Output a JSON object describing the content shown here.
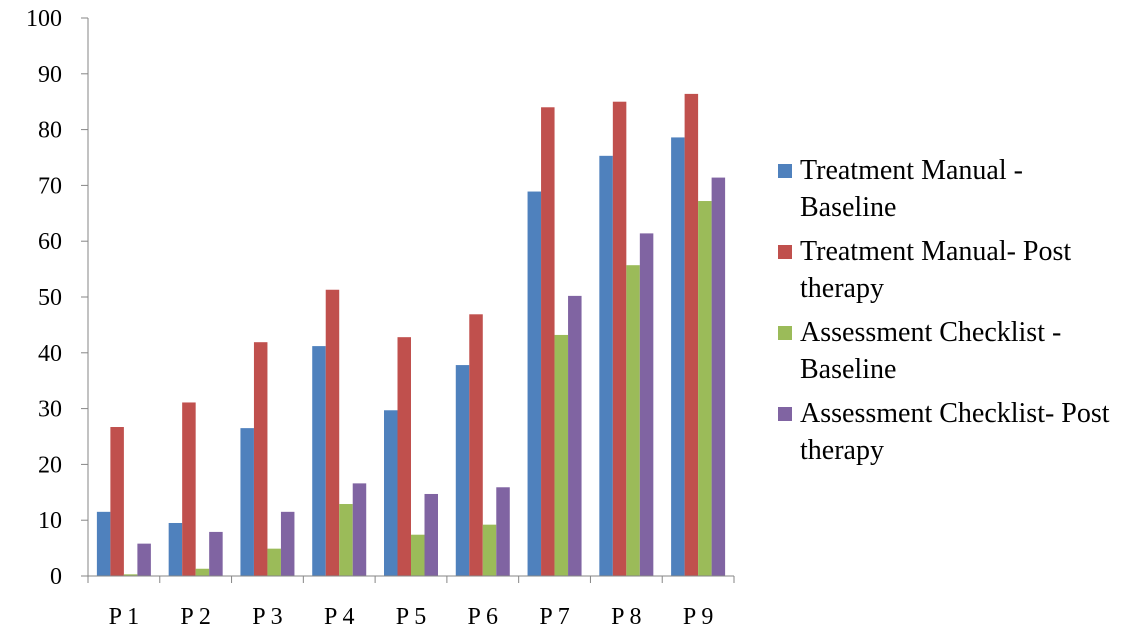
{
  "chart_data": {
    "type": "bar",
    "categories": [
      "P 1",
      "P 2",
      "P 3",
      "P 4",
      "P 5",
      "P 6",
      "P 7",
      "P 8",
      "P 9"
    ],
    "ylim": [
      0,
      100
    ],
    "yticks": [
      "0",
      "10",
      "20",
      "30",
      "40",
      "50",
      "60",
      "70",
      "80",
      "90",
      "100"
    ],
    "grid": false,
    "legend_position": "right",
    "series": [
      {
        "name": "Treatment Manual - Baseline",
        "color": "#4F81BD",
        "values": [
          11.5,
          9.5,
          26.5,
          41.2,
          29.7,
          37.8,
          68.9,
          75.3,
          78.6
        ]
      },
      {
        "name": "Treatment Manual- Post therapy",
        "color": "#C0504D",
        "values": [
          26.7,
          31.1,
          41.9,
          51.3,
          42.8,
          46.9,
          84.0,
          85.0,
          86.4
        ]
      },
      {
        "name": "Assessment Checklist - Baseline",
        "color": "#9BBB59",
        "values": [
          0.3,
          1.3,
          4.9,
          12.9,
          7.4,
          9.2,
          43.2,
          55.7,
          67.2
        ]
      },
      {
        "name": "Assessment Checklist- Post therapy",
        "color": "#8064A2",
        "values": [
          5.8,
          7.9,
          11.5,
          16.6,
          14.7,
          15.9,
          50.2,
          61.4,
          71.4
        ]
      }
    ]
  }
}
